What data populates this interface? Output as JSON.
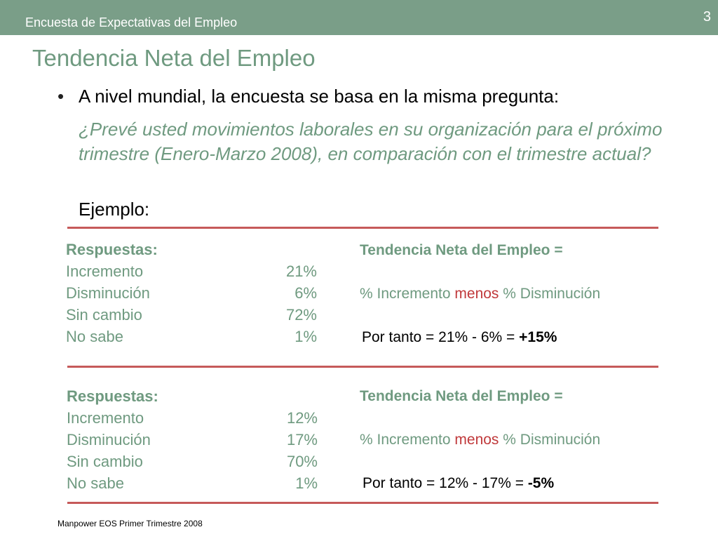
{
  "header": {
    "title": "Encuesta de Expectativas del Empleo",
    "page_number": "3"
  },
  "slide": {
    "title": "Tendencia Neta del Empleo",
    "bullet": "A nivel mundial, la encuesta se basa en la misma pregunta:",
    "question": "¿Prevé usted movimientos laborales en su organización para el próximo trimestre (Enero-Marzo 2008), en comparación con el trimestre actual?",
    "example_label": "Ejemplo:"
  },
  "examples": [
    {
      "responses_heading": "Respuestas:",
      "responses": [
        {
          "label": "Incremento",
          "value": "21%"
        },
        {
          "label": "Disminución",
          "value": "6%"
        },
        {
          "label": "Sin cambio",
          "value": "72%"
        },
        {
          "label": "No sabe",
          "value": "1%"
        }
      ],
      "tne_heading": "Tendencia Neta del Empleo =",
      "formula_prefix": "% Incremento ",
      "formula_menos": "menos",
      "formula_suffix": " % Disminución",
      "result_prefix": "Por tanto = 21% - 6% = ",
      "result_value": "+15%"
    },
    {
      "responses_heading": "Respuestas:",
      "responses": [
        {
          "label": "Incremento",
          "value": "12%"
        },
        {
          "label": "Disminución",
          "value": "17%"
        },
        {
          "label": "Sin cambio",
          "value": "70%"
        },
        {
          "label": "No sabe",
          "value": "1%"
        }
      ],
      "tne_heading": "Tendencia Neta del Empleo =",
      "formula_prefix": "% Incremento ",
      "formula_menos": "menos",
      "formula_suffix": " % Disminución",
      "result_prefix": "Por tanto = 12% - 17% = ",
      "result_value": "-5%"
    }
  ],
  "footer": {
    "text": "Manpower EOS Primer Trimestre 2008"
  },
  "colors": {
    "header_bar": "#7a9e88",
    "title_green": "#6f9a80",
    "rule_red": "#c65a5a",
    "menos_red": "#c0393b"
  }
}
